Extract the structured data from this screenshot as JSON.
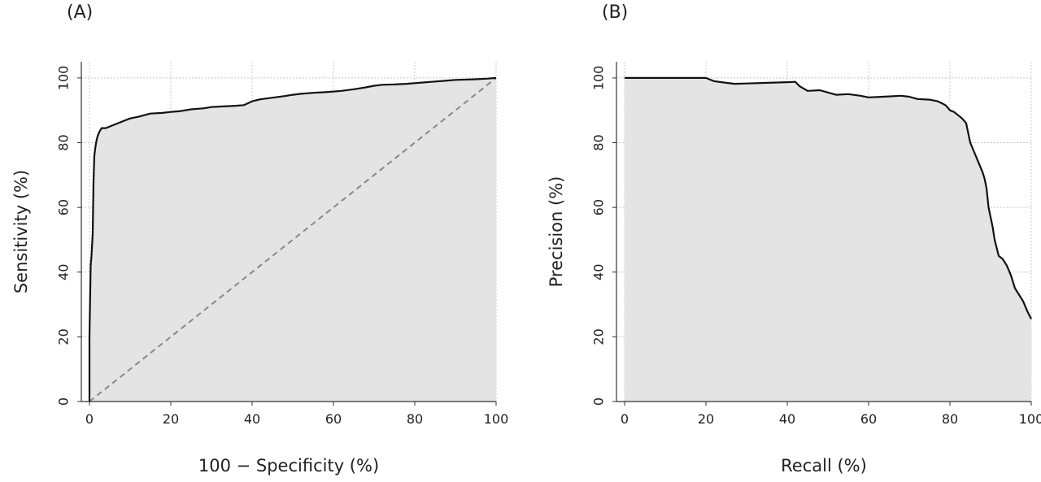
{
  "chart_data": [
    {
      "panel": "(A)",
      "type": "line",
      "xlabel": "100 − Specificity (%)",
      "ylabel": "Sensitivity (%)",
      "xlim": [
        -2,
        100
      ],
      "ylim": [
        0,
        105
      ],
      "xticks": [
        0,
        20,
        40,
        60,
        80,
        100
      ],
      "yticks": [
        0,
        20,
        40,
        60,
        80,
        100
      ],
      "grid": true,
      "area_fill": "#e4e4e4",
      "series": [
        {
          "x": [
            0,
            0,
            0.3,
            0.5,
            0.8,
            1,
            1.2,
            1.5,
            1.8,
            2,
            2.5,
            3,
            4,
            6,
            8,
            10,
            12,
            15,
            18,
            20,
            22,
            25,
            28,
            30,
            33,
            36,
            38,
            40,
            42,
            45,
            48,
            50,
            52,
            55,
            58,
            60,
            62,
            65,
            68,
            70,
            72,
            75,
            78,
            80,
            82,
            85,
            88,
            90,
            95,
            98,
            100
          ],
          "y": [
            0,
            20,
            42,
            45,
            52,
            68,
            76,
            79,
            81,
            82,
            83.5,
            84.5,
            84.5,
            85.5,
            86.5,
            87.5,
            88,
            89,
            89.2,
            89.5,
            89.7,
            90.3,
            90.6,
            91,
            91.2,
            91.4,
            91.6,
            92.8,
            93.4,
            93.9,
            94.4,
            94.8,
            95.1,
            95.4,
            95.6,
            95.8,
            96,
            96.5,
            97.1,
            97.6,
            97.9,
            98,
            98.2,
            98.4,
            98.6,
            98.9,
            99.2,
            99.4,
            99.6,
            99.8,
            100
          ]
        },
        {
          "x": [
            0,
            100
          ],
          "y": [
            0,
            100
          ],
          "style": "dashed"
        }
      ]
    },
    {
      "panel": "(B)",
      "type": "line",
      "xlabel": "Recall (%)",
      "ylabel": "Precision (%)",
      "xlim": [
        -2,
        100
      ],
      "ylim": [
        0,
        105
      ],
      "xticks": [
        0,
        20,
        40,
        60,
        80,
        100
      ],
      "yticks": [
        0,
        20,
        40,
        60,
        80,
        100
      ],
      "grid": true,
      "area_fill": "#e4e4e4",
      "series": [
        {
          "x": [
            0,
            5,
            10,
            15,
            20,
            22,
            25,
            27,
            30,
            35,
            40,
            42,
            43,
            45,
            48,
            50,
            52,
            55,
            58,
            60,
            62,
            65,
            68,
            70,
            72,
            75,
            77,
            78,
            79,
            80,
            81,
            82,
            83,
            84,
            84.5,
            85,
            86,
            87,
            88,
            88.5,
            89,
            89.5,
            90,
            90.5,
            91,
            92,
            93,
            94,
            95,
            96,
            97,
            98,
            99,
            100
          ],
          "y": [
            100,
            100,
            100,
            100,
            100,
            99,
            98.5,
            98.2,
            98.3,
            98.5,
            98.7,
            98.8,
            97.5,
            96,
            96.2,
            95.5,
            94.8,
            95,
            94.5,
            94,
            94.1,
            94.3,
            94.5,
            94.2,
            93.5,
            93.3,
            92.8,
            92.2,
            91.5,
            90,
            89.5,
            88.5,
            87.5,
            86,
            83,
            80,
            77,
            74,
            71,
            69,
            66,
            60,
            57,
            54,
            50,
            45,
            44,
            42,
            39,
            35,
            33,
            31,
            28,
            25.5
          ]
        }
      ]
    }
  ]
}
